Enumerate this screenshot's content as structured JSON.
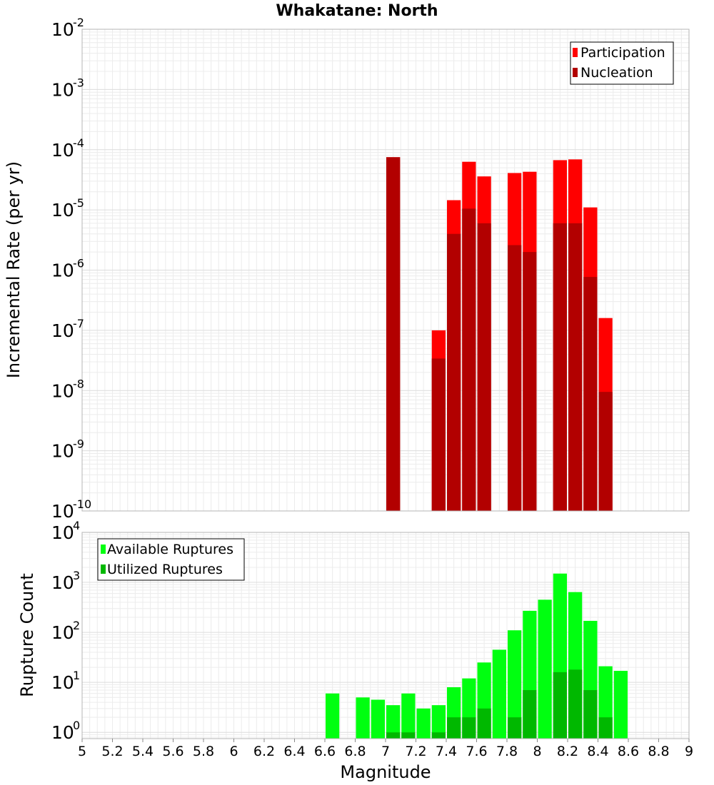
{
  "chart_data": {
    "title": "Whakatane: North",
    "xlabel": "Magnitude",
    "xlim": [
      5,
      9
    ],
    "xticks": [
      "5",
      "5.2",
      "5.4",
      "5.6",
      "5.8",
      "6",
      "6.2",
      "6.4",
      "6.6",
      "6.8",
      "7",
      "7.2",
      "7.4",
      "7.6",
      "7.8",
      "8",
      "8.2",
      "8.4",
      "8.6",
      "8.8",
      "9"
    ],
    "bar_width": 0.1,
    "panels": [
      {
        "type": "bar",
        "ylabel": "Incremental Rate (per yr)",
        "yscale": "log",
        "ylim": [
          1e-10,
          0.01
        ],
        "yticks": [
          {
            "base": "10",
            "exp": "-10",
            "value": 1e-10
          },
          {
            "base": "10",
            "exp": "-9",
            "value": 1e-09
          },
          {
            "base": "10",
            "exp": "-8",
            "value": 1e-08
          },
          {
            "base": "10",
            "exp": "-7",
            "value": 1e-07
          },
          {
            "base": "10",
            "exp": "-6",
            "value": 1e-06
          },
          {
            "base": "10",
            "exp": "-5",
            "value": 1e-05
          },
          {
            "base": "10",
            "exp": "-4",
            "value": 0.0001
          },
          {
            "base": "10",
            "exp": "-3",
            "value": 0.001
          },
          {
            "base": "10",
            "exp": "-2",
            "value": 0.01
          }
        ],
        "grid": true,
        "legend_position": "top-right",
        "series": [
          {
            "name": "Participation",
            "color": "#ff0000",
            "x": [
              7.05,
              7.35,
              7.45,
              7.55,
              7.65,
              7.85,
              7.95,
              8.15,
              8.25,
              8.35,
              8.45
            ],
            "values": [
              7.5e-05,
              1e-07,
              1.45e-05,
              6.3e-05,
              3.6e-05,
              4.1e-05,
              4.3e-05,
              6.7e-05,
              6.9e-05,
              1.1e-05,
              1.6e-07
            ]
          },
          {
            "name": "Nucleation",
            "color": "#b20000",
            "x": [
              7.05,
              7.35,
              7.45,
              7.55,
              7.65,
              7.85,
              7.95,
              8.15,
              8.25,
              8.35,
              8.45
            ],
            "values": [
              7.5e-05,
              3.4e-08,
              4e-06,
              1.05e-05,
              6e-06,
              2.6e-06,
              2e-06,
              6e-06,
              6e-06,
              7.7e-07,
              9.5e-09
            ]
          }
        ]
      },
      {
        "type": "bar",
        "ylabel": "Rupture Count",
        "yscale": "log",
        "ylim": [
          0.75,
          10000
        ],
        "yticks": [
          {
            "base": "10",
            "exp": "0",
            "value": 1
          },
          {
            "base": "10",
            "exp": "1",
            "value": 10
          },
          {
            "base": "10",
            "exp": "2",
            "value": 100
          },
          {
            "base": "10",
            "exp": "3",
            "value": 1000
          },
          {
            "base": "10",
            "exp": "4",
            "value": 10000
          }
        ],
        "grid": true,
        "legend_position": "top-left",
        "series": [
          {
            "name": "Available Ruptures",
            "color": "#00ff10",
            "x": [
              6.65,
              6.85,
              6.95,
              7.05,
              7.15,
              7.25,
              7.35,
              7.45,
              7.55,
              7.65,
              7.75,
              7.85,
              7.95,
              8.05,
              8.15,
              8.25,
              8.35,
              8.45,
              8.55
            ],
            "values": [
              6,
              5,
              4.5,
              3.5,
              6,
              3,
              3.5,
              8,
              12,
              25,
              45,
              110,
              270,
              450,
              1500,
              640,
              170,
              21,
              17
            ]
          },
          {
            "name": "Utilized Ruptures",
            "color": "#00b800",
            "x": [
              7.05,
              7.15,
              7.35,
              7.45,
              7.55,
              7.65,
              7.85,
              7.95,
              8.15,
              8.25,
              8.35,
              8.45
            ],
            "values": [
              1,
              1,
              1,
              2,
              2,
              3,
              2,
              7,
              16,
              18,
              7,
              2
            ]
          }
        ]
      }
    ]
  }
}
